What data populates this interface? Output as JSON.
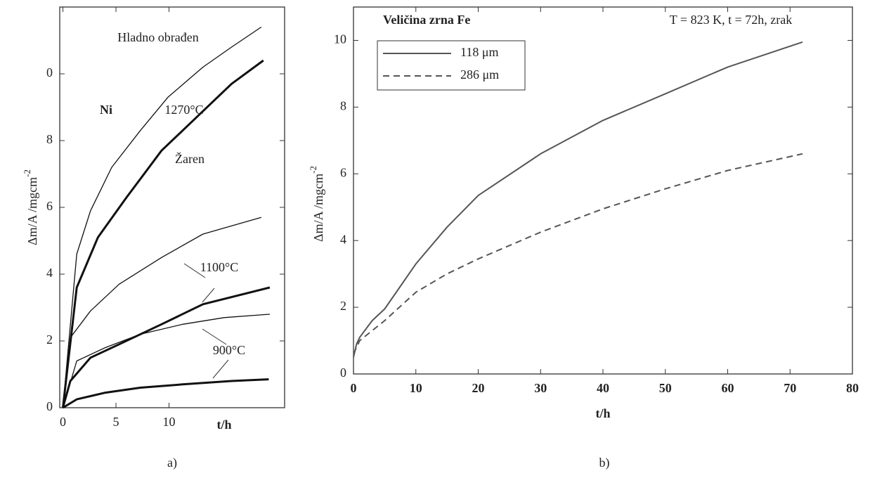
{
  "chart_data": [
    {
      "type": "line",
      "title": "Ni",
      "caption": "a)",
      "y_label": {
        "text": "Δm/A /mgcm",
        "superscript": "-2"
      },
      "x_label": "t/h",
      "xlim": [
        -0.3,
        20.9
      ],
      "ylim": [
        0,
        12
      ],
      "xticks": [
        0,
        5,
        10
      ],
      "yticks": [
        0,
        2,
        4,
        6,
        8,
        {
          "value": 10,
          "label": "0"
        }
      ],
      "annotations": [
        "Hladno obrađen",
        "1270°C",
        "Žaren",
        "1100°C",
        "900°C"
      ],
      "series": [
        {
          "color": "#111111",
          "style": "thin",
          "x": [
            0,
            1.3,
            2.6,
            4.6,
            7.3,
            9.9,
            13.2,
            15.9,
            18.7
          ],
          "values": [
            0,
            4.6,
            5.9,
            7.2,
            8.3,
            9.3,
            10.2,
            10.8,
            11.4
          ]
        },
        {
          "color": "#111111",
          "style": "thick",
          "x": [
            0,
            1.3,
            3.3,
            6,
            9.3,
            12.6,
            15.9,
            18.9
          ],
          "values": [
            0,
            3.6,
            5.1,
            6.3,
            7.7,
            8.7,
            9.7,
            10.4
          ]
        },
        {
          "color": "#111111",
          "style": "thin",
          "x": [
            0,
            0.7,
            2.6,
            5.3,
            9.3,
            13.2,
            18.7
          ],
          "values": [
            0,
            2.1,
            2.9,
            3.7,
            4.5,
            5.2,
            5.7
          ]
        },
        {
          "color": "#111111",
          "style": "thick",
          "x": [
            0,
            0.7,
            2.6,
            5.3,
            9.3,
            13.2,
            19.5
          ],
          "values": [
            0,
            0.8,
            1.5,
            1.9,
            2.5,
            3.1,
            3.6
          ]
        },
        {
          "color": "#111111",
          "style": "thin",
          "x": [
            0,
            1.3,
            4,
            7.3,
            11.3,
            15.2,
            19.5
          ],
          "values": [
            0,
            1.4,
            1.8,
            2.2,
            2.5,
            2.7,
            2.8
          ]
        },
        {
          "color": "#111111",
          "style": "thick",
          "x": [
            0,
            1.3,
            4,
            7.3,
            11.3,
            15.9,
            19.4
          ],
          "values": [
            0,
            0.25,
            0.45,
            0.6,
            0.7,
            0.8,
            0.85
          ]
        }
      ]
    },
    {
      "type": "line",
      "title": "Veličina zrna Fe",
      "subtitle": "T = 823 K, t = 72h, zrak",
      "caption": "b)",
      "y_label": {
        "text": "Δm/A /mgcm",
        "superscript": "-2"
      },
      "x_label": "t/h",
      "xlim": [
        0,
        80
      ],
      "ylim": [
        0,
        11
      ],
      "xticks": [
        0,
        10,
        20,
        30,
        40,
        50,
        60,
        70,
        80
      ],
      "yticks": [
        0,
        2,
        4,
        6,
        8,
        10
      ],
      "legend": "top-left",
      "series": [
        {
          "name": "118 μm",
          "color": "#555555",
          "style": "solid",
          "x": [
            0,
            0.5,
            1,
            3,
            5,
            10,
            15,
            20,
            30,
            40,
            50,
            60,
            72
          ],
          "values": [
            0.5,
            0.9,
            1.1,
            1.6,
            1.95,
            3.3,
            4.4,
            5.35,
            6.6,
            7.6,
            8.4,
            9.2,
            9.95
          ]
        },
        {
          "name": "286 μm",
          "color": "#555555",
          "style": "dashed",
          "x": [
            0,
            1,
            5,
            10,
            15,
            20,
            30,
            40,
            50,
            60,
            72
          ],
          "values": [
            0.6,
            1.0,
            1.6,
            2.45,
            3.0,
            3.45,
            4.25,
            4.95,
            5.55,
            6.1,
            6.6
          ]
        }
      ]
    }
  ]
}
